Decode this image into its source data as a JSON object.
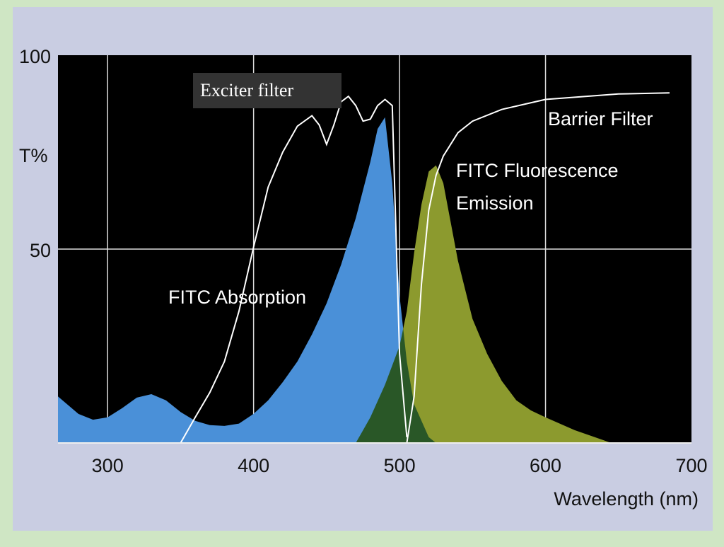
{
  "chart_data": {
    "type": "line",
    "x_label": "Wavelength (nm)",
    "y_label": "T%",
    "xlim": [
      266,
      700
    ],
    "ylim": [
      0,
      100
    ],
    "xticks": [
      300,
      400,
      500,
      600,
      700
    ],
    "yticks": [
      50,
      100
    ],
    "grid": true,
    "series": [
      {
        "name": "FITC Absorption",
        "fill": true,
        "color": "#4a90d8",
        "x": [
          266,
          280,
          290,
          300,
          310,
          320,
          330,
          340,
          350,
          360,
          370,
          380,
          390,
          400,
          410,
          420,
          430,
          440,
          450,
          460,
          470,
          480,
          485,
          490,
          495,
          500,
          505,
          510,
          520,
          525
        ],
        "values": [
          12,
          7.5,
          6,
          6.6,
          9,
          11.7,
          12.6,
          11,
          8,
          5.7,
          4.6,
          4.4,
          5,
          7.5,
          11,
          15.7,
          21,
          28,
          36,
          46,
          58,
          72.5,
          81,
          84,
          67,
          38,
          21,
          10,
          1.5,
          0
        ]
      },
      {
        "name": "FITC Fluorescence Emission",
        "fill": true,
        "color": "#8c9a2e",
        "x": [
          470,
          480,
          490,
          500,
          505,
          510,
          515,
          520,
          525,
          530,
          540,
          550,
          560,
          570,
          580,
          590,
          600,
          620,
          640,
          645
        ],
        "values": [
          0,
          6.6,
          15,
          25,
          34,
          49,
          61.5,
          70,
          71.6,
          67,
          47,
          32,
          23,
          16,
          11,
          8.4,
          6.6,
          3.3,
          0.7,
          0
        ]
      },
      {
        "name": "Exciter filter",
        "fill": false,
        "color": "#ffffff",
        "x": [
          350,
          360,
          370,
          380,
          390,
          400,
          410,
          420,
          430,
          440,
          445,
          450,
          455,
          460,
          465,
          470,
          475,
          480,
          485,
          490,
          495,
          500,
          505
        ],
        "values": [
          0,
          6.6,
          13,
          21,
          34,
          50.5,
          66,
          75,
          81.7,
          84.4,
          82,
          77,
          82,
          88,
          89.4,
          87,
          83,
          83.5,
          87,
          88.6,
          87,
          23,
          1.5
        ]
      },
      {
        "name": "Barrier Filter",
        "fill": false,
        "color": "#ffffff",
        "x": [
          505,
          510,
          515,
          520,
          525,
          530,
          540,
          550,
          570,
          600,
          650,
          685
        ],
        "values": [
          0,
          12,
          41,
          60,
          69,
          74,
          80,
          83,
          86,
          88.6,
          90,
          90.3
        ]
      }
    ]
  }
}
